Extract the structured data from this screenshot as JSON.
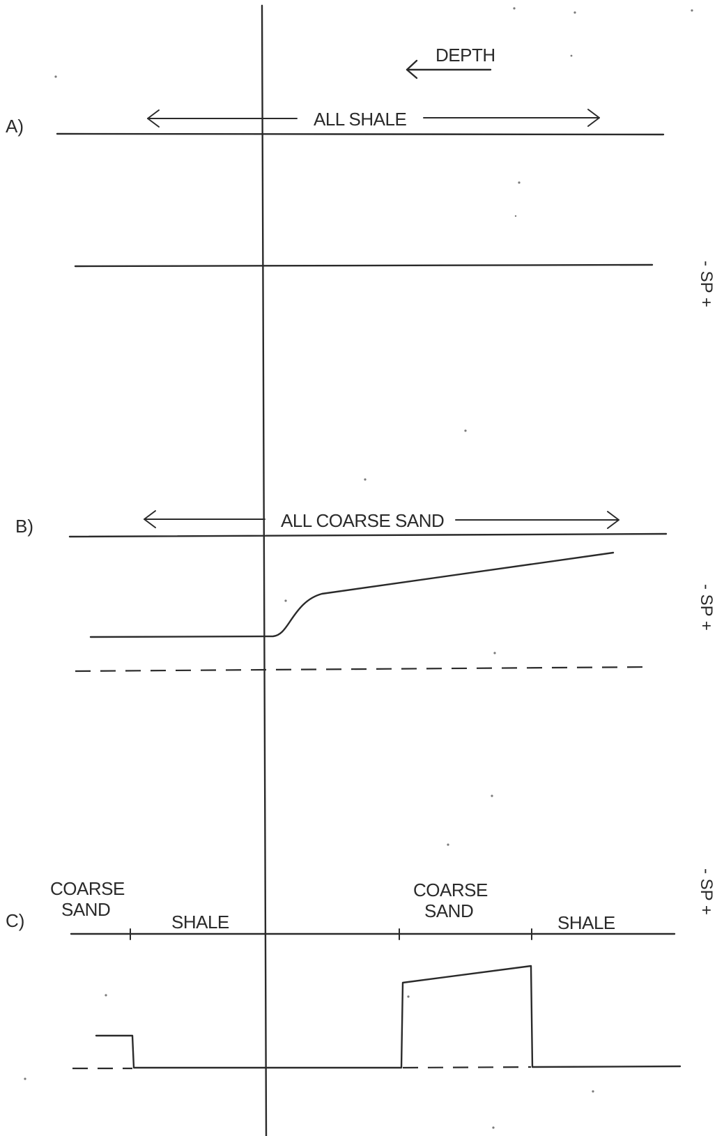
{
  "depth_label": "DEPTH",
  "panels": [
    {
      "id": "A",
      "label": "A)",
      "formation_label": "ALL SHALE",
      "axis_label": "- SP +"
    },
    {
      "id": "B",
      "label": "B)",
      "formation_label": "ALL COARSE SAND",
      "axis_label": "- SP +"
    },
    {
      "id": "C",
      "label": "C)",
      "segments": [
        {
          "line1": "COARSE",
          "line2": "SAND"
        },
        {
          "line1": "SHALE",
          "line2": ""
        },
        {
          "line1": "COARSE",
          "line2": "SAND"
        },
        {
          "line1": "SHALE",
          "line2": ""
        }
      ],
      "axis_label": "- SP +"
    }
  ]
}
